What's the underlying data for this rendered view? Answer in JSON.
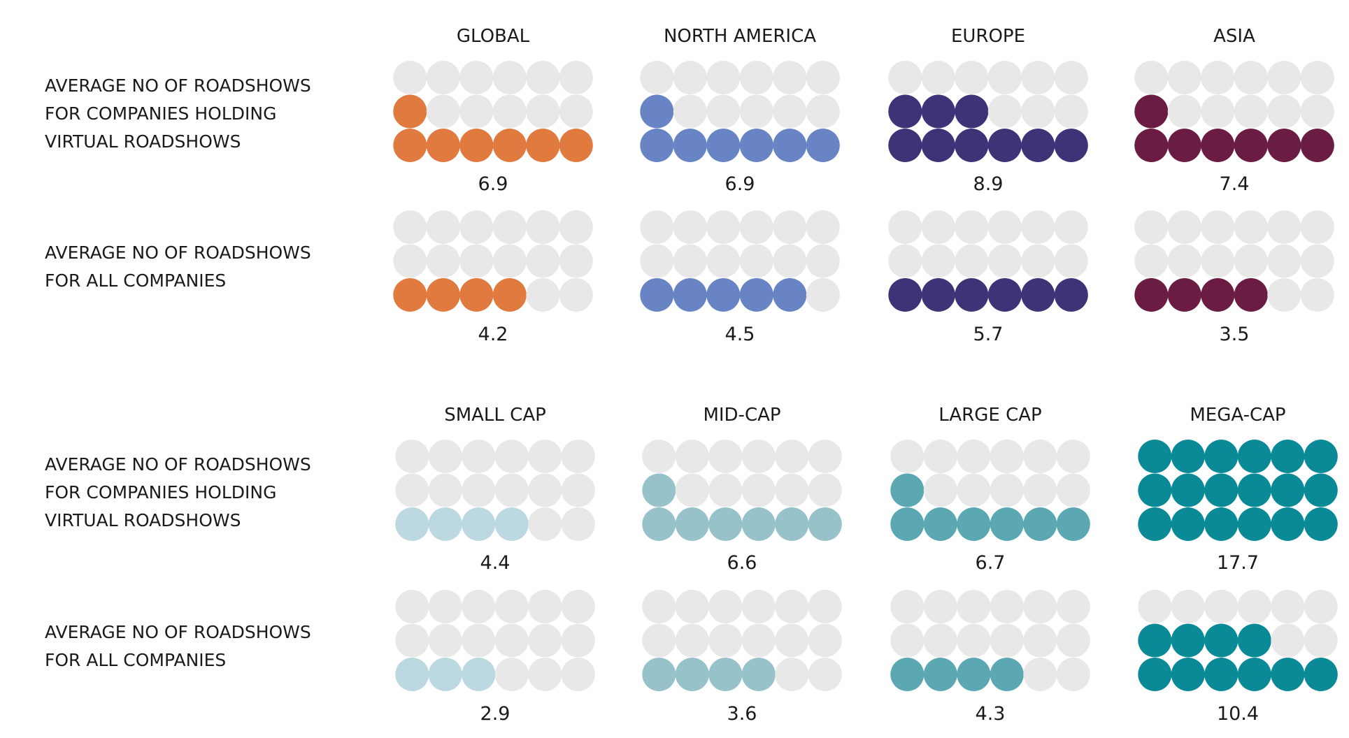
{
  "chart_data": [
    {
      "type": "table",
      "rows": [
        "AVERAGE NO OF ROADSHOWS FOR COMPANIES HOLDING VIRTUAL ROADSHOWS",
        "AVERAGE NO OF ROADSHOWS FOR ALL COMPANIES"
      ],
      "row_label_lines": [
        [
          "AVERAGE NO OF ROADSHOWS",
          "FOR COMPANIES HOLDING",
          "VIRTUAL ROADSHOWS"
        ],
        [
          "AVERAGE NO OF ROADSHOWS",
          "FOR ALL COMPANIES"
        ]
      ],
      "categories": [
        "GLOBAL",
        "NORTH AMERICA",
        "EUROPE",
        "ASIA"
      ],
      "colors": [
        "#E07A3E",
        "#6884C4",
        "#3D3478",
        "#6B1C43"
      ],
      "empty_color": "#E8E8E8",
      "values": [
        [
          6.9,
          6.9,
          8.9,
          7.4
        ],
        [
          4.2,
          4.5,
          5.7,
          3.5
        ]
      ],
      "value_labels": [
        [
          "6.9",
          "6.9",
          "8.9",
          "7.4"
        ],
        [
          "4.2",
          "4.5",
          "5.7",
          "3.5"
        ]
      ]
    },
    {
      "type": "table",
      "rows": [
        "AVERAGE NO OF ROADSHOWS FOR COMPANIES HOLDING VIRTUAL ROADSHOWS",
        "AVERAGE NO OF ROADSHOWS FOR ALL COMPANIES"
      ],
      "row_label_lines": [
        [
          "AVERAGE NO OF ROADSHOWS",
          "FOR COMPANIES HOLDING",
          "VIRTUAL ROADSHOWS"
        ],
        [
          "AVERAGE NO OF ROADSHOWS",
          "FOR ALL COMPANIES"
        ]
      ],
      "categories": [
        "SMALL CAP",
        "MID-CAP",
        "LARGE CAP",
        "MEGA-CAP"
      ],
      "colors": [
        "#BCD8E0",
        "#97C2CA",
        "#5BA8B2",
        "#0A8A96"
      ],
      "empty_color": "#E8E8E8",
      "values": [
        [
          4.4,
          6.6,
          6.7,
          17.7
        ],
        [
          2.9,
          3.6,
          4.3,
          10.4
        ]
      ],
      "value_labels": [
        [
          "4.4",
          "6.6",
          "6.7",
          "17.7"
        ],
        [
          "2.9",
          "3.6",
          "4.3",
          "10.4"
        ]
      ]
    }
  ]
}
